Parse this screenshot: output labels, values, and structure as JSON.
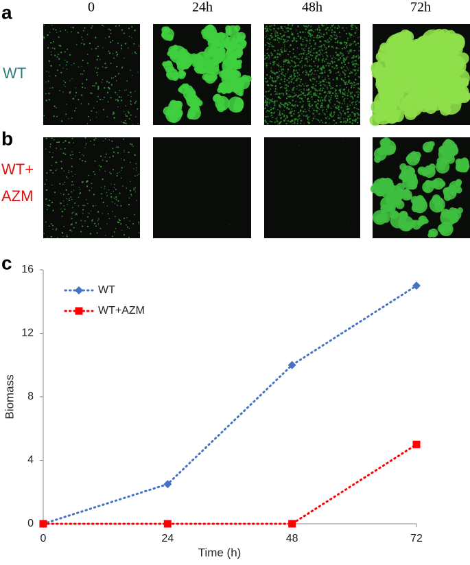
{
  "figure": {
    "panel_labels": [
      "a",
      "b",
      "c"
    ],
    "column_headers": [
      "0",
      "24h",
      "48h",
      "72h"
    ],
    "row_labels": [
      [
        "WT"
      ],
      [
        "WT+",
        "AZM"
      ]
    ]
  },
  "chart_data": {
    "type": "line",
    "xlabel": "Time (h)",
    "ylabel": "Biomass",
    "x": [
      0,
      24,
      48,
      72
    ],
    "xlim": [
      0,
      72
    ],
    "xticks": [
      0,
      24,
      48,
      72
    ],
    "ylim": [
      0,
      16
    ],
    "yticks": [
      0,
      4,
      8,
      12,
      16
    ],
    "legend": "upper left",
    "series": [
      {
        "name": "WT",
        "color": "#4472c4",
        "marker": "diamond",
        "values": [
          0,
          2.5,
          10,
          15
        ]
      },
      {
        "name": "WT+AZM",
        "color": "#ff0000",
        "marker": "square",
        "values": [
          0,
          0,
          0,
          5
        ]
      }
    ]
  }
}
